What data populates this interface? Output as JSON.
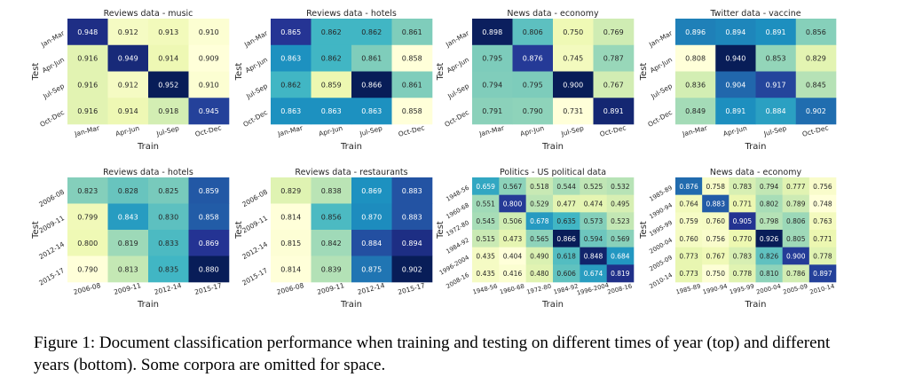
{
  "colors": {
    "low": "#ffffd9",
    "mid_low": "#c7e9b4",
    "mid": "#41b6c4",
    "mid_high": "#225ea8",
    "high": "#081d58"
  },
  "chart_data": [
    {
      "type": "heatmap",
      "title": "Reviews data - music",
      "xlabel": "Train",
      "ylabel": "Test",
      "x_categories": [
        "Jan-Mar",
        "Apr-Jun",
        "Jul-Sep",
        "Oct-Dec"
      ],
      "y_categories": [
        "Jan-Mar",
        "Apr-Jun",
        "Jul-Sep",
        "Oct-Dec"
      ],
      "values": [
        [
          0.948,
          0.912,
          0.913,
          0.91
        ],
        [
          0.916,
          0.949,
          0.914,
          0.909
        ],
        [
          0.916,
          0.912,
          0.952,
          0.91
        ],
        [
          0.916,
          0.914,
          0.918,
          0.945
        ]
      ]
    },
    {
      "type": "heatmap",
      "title": "Reviews data - hotels",
      "xlabel": "Train",
      "ylabel": "Test",
      "x_categories": [
        "Jan-Mar",
        "Apr-Jun",
        "Jul-Sep",
        "Oct-Dec"
      ],
      "y_categories": [
        "Jan-Mar",
        "Apr-Jun",
        "Jul-Sep",
        "Oct-Dec"
      ],
      "values": [
        [
          0.865,
          0.862,
          0.862,
          0.861
        ],
        [
          0.863,
          0.862,
          0.861,
          0.858
        ],
        [
          0.862,
          0.859,
          0.866,
          0.861
        ],
        [
          0.863,
          0.863,
          0.863,
          0.858
        ]
      ]
    },
    {
      "type": "heatmap",
      "title": "News data - economy",
      "xlabel": "Train",
      "ylabel": "Test",
      "x_categories": [
        "Jan-Mar",
        "Apr-Jun",
        "Jul-Sep",
        "Oct-Dec"
      ],
      "y_categories": [
        "Jan-Mar",
        "Apr-Jun",
        "Jul-Sep",
        "Oct-Dec"
      ],
      "values": [
        [
          0.898,
          0.806,
          0.75,
          0.769
        ],
        [
          0.795,
          0.876,
          0.745,
          0.787
        ],
        [
          0.794,
          0.795,
          0.9,
          0.767
        ],
        [
          0.791,
          0.79,
          0.731,
          0.891
        ]
      ]
    },
    {
      "type": "heatmap",
      "title": "Twitter data - vaccine",
      "xlabel": "Train",
      "ylabel": "Test",
      "x_categories": [
        "Jan-Mar",
        "Apr-Jun",
        "Jul-Sep",
        "Oct-Dec"
      ],
      "y_categories": [
        "Jan-Mar",
        "Apr-Jun",
        "Jul-Sep",
        "Oct-Dec"
      ],
      "values": [
        [
          0.896,
          0.894,
          0.891,
          0.856
        ],
        [
          0.808,
          0.94,
          0.853,
          0.829
        ],
        [
          0.836,
          0.904,
          0.917,
          0.845
        ],
        [
          0.849,
          0.891,
          0.884,
          0.902
        ]
      ]
    },
    {
      "type": "heatmap",
      "title": "Reviews data - hotels",
      "xlabel": "Train",
      "ylabel": "Test",
      "x_categories": [
        "2006-08",
        "2009-11",
        "2012-14",
        "2015-17"
      ],
      "y_categories": [
        "2006-08",
        "2009-11",
        "2012-14",
        "2015-17"
      ],
      "values": [
        [
          0.823,
          0.828,
          0.825,
          0.859
        ],
        [
          0.799,
          0.843,
          0.83,
          0.858
        ],
        [
          0.8,
          0.819,
          0.833,
          0.869
        ],
        [
          0.79,
          0.813,
          0.835,
          0.88
        ]
      ]
    },
    {
      "type": "heatmap",
      "title": "Reviews data - restaurants",
      "xlabel": "Train",
      "ylabel": "Test",
      "x_categories": [
        "2006-08",
        "2009-11",
        "2012-14",
        "2015-17"
      ],
      "y_categories": [
        "2006-08",
        "2009-11",
        "2012-14",
        "2015-17"
      ],
      "values": [
        [
          0.829,
          0.838,
          0.869,
          0.883
        ],
        [
          0.814,
          0.856,
          0.87,
          0.883
        ],
        [
          0.815,
          0.842,
          0.884,
          0.894
        ],
        [
          0.814,
          0.839,
          0.875,
          0.902
        ]
      ]
    },
    {
      "type": "heatmap",
      "title": "Politics - US political data",
      "xlabel": "Train",
      "ylabel": "Test",
      "x_categories": [
        "1948-56",
        "1960-68",
        "1972-80",
        "1984-92",
        "1996-2004",
        "2008-16"
      ],
      "y_categories": [
        "1948-56",
        "1960-68",
        "1972-80",
        "1984-92",
        "1996-2004",
        "2008-16"
      ],
      "values": [
        [
          0.659,
          0.567,
          0.518,
          0.544,
          0.525,
          0.532
        ],
        [
          0.551,
          0.8,
          0.529,
          0.477,
          0.474,
          0.495
        ],
        [
          0.545,
          0.506,
          0.678,
          0.635,
          0.573,
          0.523
        ],
        [
          0.515,
          0.473,
          0.565,
          0.866,
          0.594,
          0.569
        ],
        [
          0.435,
          0.404,
          0.49,
          0.618,
          0.848,
          0.684
        ],
        [
          0.435,
          0.416,
          0.48,
          0.606,
          0.674,
          0.819
        ]
      ]
    },
    {
      "type": "heatmap",
      "title": "News data - economy",
      "xlabel": "Train",
      "ylabel": "Test",
      "x_categories": [
        "1985-89",
        "1990-94",
        "1995-99",
        "2000-04",
        "2005-09",
        "2010-14"
      ],
      "y_categories": [
        "1985-89",
        "1990-94",
        "1995-99",
        "2000-04",
        "2005-09",
        "2010-14"
      ],
      "values": [
        [
          0.876,
          0.758,
          0.783,
          0.794,
          0.777,
          0.756
        ],
        [
          0.764,
          0.883,
          0.771,
          0.802,
          0.789,
          0.748
        ],
        [
          0.759,
          0.76,
          0.905,
          0.798,
          0.806,
          0.763
        ],
        [
          0.76,
          0.756,
          0.77,
          0.926,
          0.805,
          0.771
        ],
        [
          0.773,
          0.767,
          0.783,
          0.826,
          0.9,
          0.778
        ],
        [
          0.773,
          0.75,
          0.778,
          0.81,
          0.786,
          0.897
        ]
      ]
    }
  ],
  "caption": "Figure 1:   Document classification performance when training and testing on different times of year (top) and different years (bottom). Some corpora are omitted for space."
}
